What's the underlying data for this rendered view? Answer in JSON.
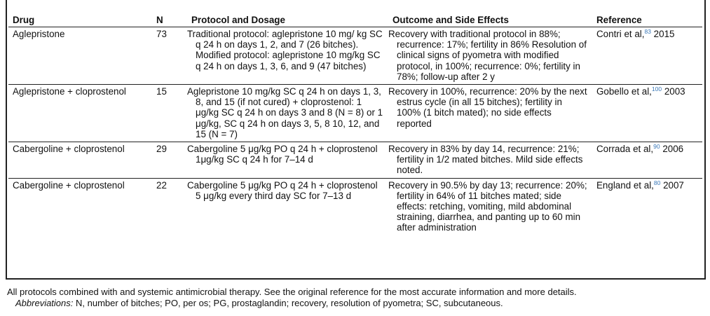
{
  "headers": {
    "drug": "Drug",
    "n": "N",
    "protocol": "Protocol and Dosage",
    "outcome": "Outcome and Side Effects",
    "reference": "Reference"
  },
  "rows": [
    {
      "drug": "Aglepristone",
      "n": "73",
      "protocol": "Traditional protocol: aglepristone 10 mg/ kg SC q 24 h on days 1, 2, and 7 (26 bitches). Modified protocol: aglepristone 10 mg/kg SC q 24 h on days 1, 3, 6, and 9 (47 bitches)",
      "outcome": "Recovery with traditional protocol in 88%; recurrence: 17%; fertility in 86% Resolution of clinical signs of pyometra with modified protocol, in 100%; recurrence: 0%; fertility in 78%; follow-up after 2 y",
      "ref_author": "Contri et al,",
      "ref_num": "83",
      "ref_year": " 2015"
    },
    {
      "drug": "Aglepristone + cloprostenol",
      "n": "15",
      "protocol": "Aglepristone 10 mg/kg SC q 24 h on days 1, 3, 8, and 15 (if not cured) + cloprostenol: 1 μg/kg SC q 24 h on days 3 and 8 (N = 8) or 1 μg/kg, SC q 24 h on days 3, 5, 8 10, 12, and 15 (N = 7)",
      "outcome": "Recovery in 100%, recurrence: 20% by the next estrus cycle (in all 15 bitches); fertility in 100% (1 bitch mated); no side effects reported",
      "ref_author": "Gobello et al,",
      "ref_num": "100",
      "ref_year": " 2003"
    },
    {
      "drug": "Cabergoline + cloprostenol",
      "n": "29",
      "protocol": "Cabergoline 5 μg/kg PO q 24 h + cloprostenol 1μg/kg SC q 24 h for 7–14 d",
      "outcome": "Recovery in 83% by day 14, recurrence: 21%; fertility in 1/2 mated bitches. Mild side effects noted.",
      "ref_author": "Corrada et al,",
      "ref_num": "90",
      "ref_year": " 2006"
    },
    {
      "drug": "Cabergoline + cloprostenol",
      "n": "22",
      "protocol": "Cabergoline 5 μg/kg PO q 24 h + cloprostenol 5 μg/kg every third day SC for 7–13 d",
      "outcome": "Recovery in 90.5% by day 13; recurrence: 20%; fertility in 64% of 11 bitches mated; side effects: retching, vomiting, mild abdominal straining, diarrhea, and panting up to 60 min after administration",
      "ref_author": "England et al,",
      "ref_num": "80",
      "ref_year": " 2007"
    }
  ],
  "footnote": {
    "line1": "All protocols combined with and systemic antimicrobial therapy. See the original reference for the most accurate information and more details.",
    "abbr_label": "Abbreviations:",
    "abbr_text": " N, number of bitches; PO, per os; PG, prostaglandin; recovery, resolution of pyometra; SC, subcutaneous."
  }
}
